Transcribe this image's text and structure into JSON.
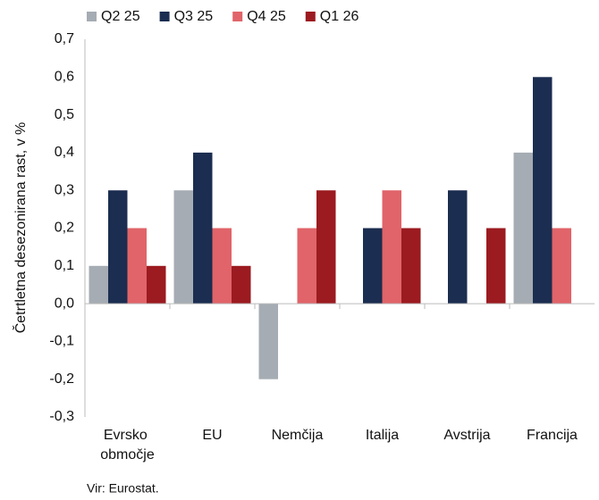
{
  "chart_data": {
    "type": "bar",
    "y_label": "Četrtletna desezonirana rast, v %",
    "source": "Vir: Eurostat.",
    "categories": [
      "Evrsko območje",
      "EU",
      "Nemčija",
      "Italija",
      "Avstrija",
      "Francija"
    ],
    "series": [
      {
        "name": "Q2 25",
        "color": "#a5acb3",
        "values": [
          0.1,
          0.3,
          -0.2,
          0,
          0,
          0.4
        ]
      },
      {
        "name": "Q3 25",
        "color": "#1b2d50",
        "values": [
          0.3,
          0.4,
          0,
          0.2,
          0.3,
          0.6
        ]
      },
      {
        "name": "Q4 25",
        "color": "#e06469",
        "values": [
          0.2,
          0.2,
          0.2,
          0.3,
          0,
          0.2
        ]
      },
      {
        "name": "Q1 26",
        "color": "#9b1b20",
        "values": [
          0.1,
          0.1,
          0.3,
          0.2,
          0.2,
          0
        ]
      }
    ],
    "ylim": [
      -0.3,
      0.7
    ],
    "yticks": [
      {
        "value": -0.3,
        "label": "-0,3"
      },
      {
        "value": -0.2,
        "label": "-0,2"
      },
      {
        "value": -0.1,
        "label": "-0,1"
      },
      {
        "value": 0,
        "label": "0,0"
      },
      {
        "value": 0.1,
        "label": "0,1"
      },
      {
        "value": 0.2,
        "label": "0,2"
      },
      {
        "value": 0.3,
        "label": "0,3"
      },
      {
        "value": 0.4,
        "label": "0,4"
      },
      {
        "value": 0.5,
        "label": "0,5"
      },
      {
        "value": 0.6,
        "label": "0,6"
      },
      {
        "value": 0.7,
        "label": "0,7"
      }
    ],
    "legend": "top"
  }
}
